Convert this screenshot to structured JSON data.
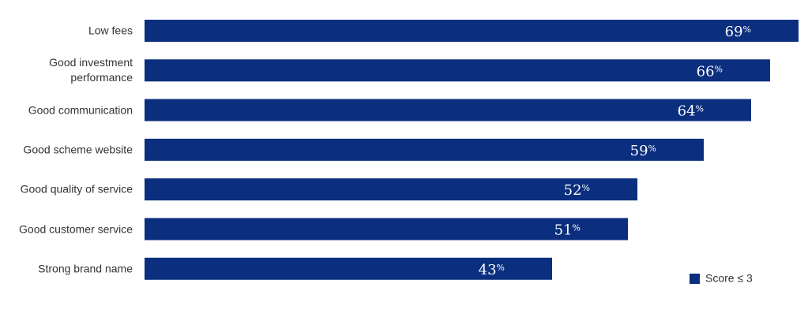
{
  "chart_data": {
    "type": "bar",
    "orientation": "horizontal",
    "categories": [
      "Low fees",
      "Good investment performance",
      "Good communication",
      "Good scheme website",
      "Good quality of service",
      "Good customer service",
      "Strong brand name"
    ],
    "series": [
      {
        "name": "Score ≤ 3",
        "color": "#0b2f7e",
        "values": [
          69,
          66,
          64,
          59,
          52,
          51,
          43
        ],
        "value_labels": [
          "69%",
          "66%",
          "64%",
          "59%",
          "52%",
          "51%",
          "43%"
        ]
      }
    ],
    "legend": "bottom-right"
  }
}
